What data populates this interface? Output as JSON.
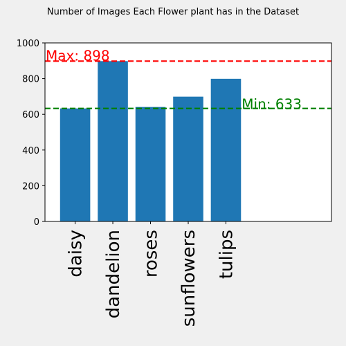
{
  "chart_data": {
    "type": "bar",
    "title": "Number of Images Each Flower plant has in the Dataset",
    "xlabel": "",
    "ylabel": "",
    "categories": [
      "daisy",
      "dandelion",
      "roses",
      "sunflowers",
      "tulips"
    ],
    "values": [
      633,
      898,
      641,
      699,
      799
    ],
    "ylim": [
      0,
      1000
    ],
    "yticks": [
      "0",
      "200",
      "400",
      "600",
      "800",
      "1000"
    ],
    "bar_color": "#1f77b4",
    "grid": false,
    "lines": [
      {
        "label": "Max: 898",
        "value": 898,
        "color": "#ff0000",
        "style": "dashed"
      },
      {
        "label": "Min: 633",
        "value": 633,
        "color": "#008000",
        "style": "dashed"
      }
    ]
  }
}
